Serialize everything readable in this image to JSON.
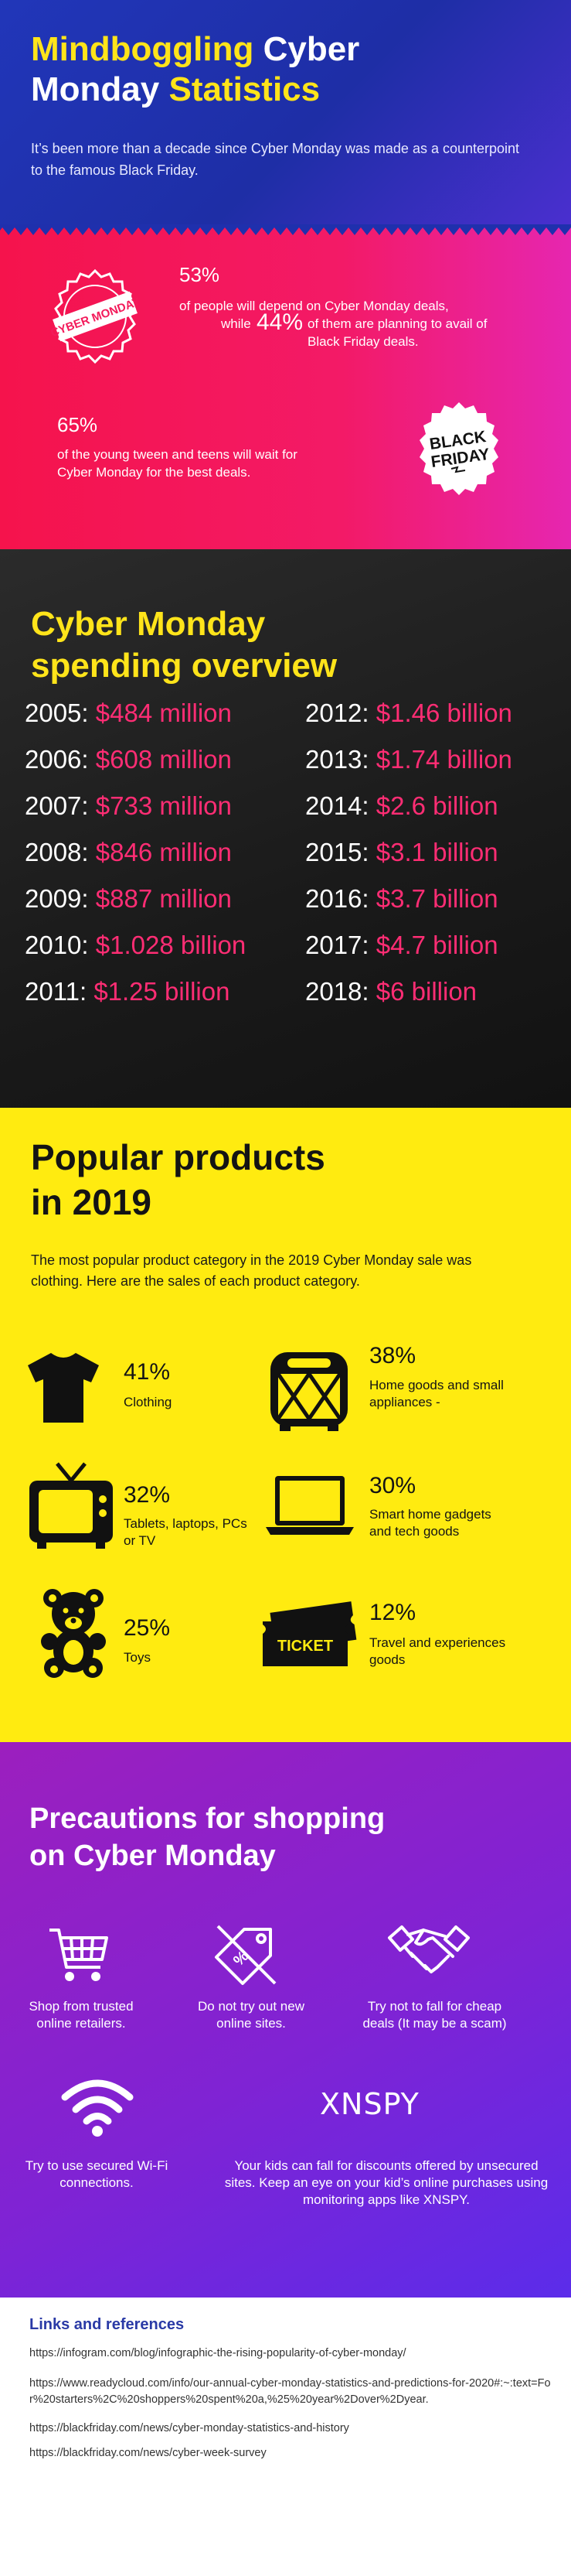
{
  "header": {
    "title_part1": "Mindboggling",
    "title_part2": "Cyber",
    "title_part3": "Monday",
    "title_part4": "Statistics",
    "intro": "It’s been more than a decade since Cyber Monday was made as a counterpoint to the famous Black Friday."
  },
  "pink": {
    "stamp_text": "CYBER MONDAY",
    "stat1_pct": "53%",
    "stat1_text": "of people will depend on Cyber Monday deals,",
    "stat1_while": "while",
    "stat2_pct": "44%",
    "stat2_text_line1": "of them are planning to avail of",
    "stat2_text_line2": "Black Friday deals.",
    "stat3_pct": "65%",
    "stat3_text_line1": "of the young tween and teens will wait for",
    "stat3_text_line2": "Cyber Monday for the best deals.",
    "badge_line1": "BLACK",
    "badge_line2": "FRIDAY"
  },
  "spending": {
    "title_line1": "Cyber Monday",
    "title_line2": "spending overview",
    "rows": [
      {
        "year": "2005:",
        "amount": "$484 million"
      },
      {
        "year": "2006:",
        "amount": "$608 million"
      },
      {
        "year": "2007:",
        "amount": "$733 million"
      },
      {
        "year": "2008:",
        "amount": "$846 million"
      },
      {
        "year": "2009:",
        "amount": "$887 million"
      },
      {
        "year": "2010:",
        "amount": "$1.028 billion"
      },
      {
        "year": "2011:",
        "amount": "$1.25 billion"
      },
      {
        "year": "2012:",
        "amount": "$1.46 billion"
      },
      {
        "year": "2013:",
        "amount": "$1.74 billion"
      },
      {
        "year": "2014:",
        "amount": "$2.6 billion"
      },
      {
        "year": "2015:",
        "amount": "$3.1 billion"
      },
      {
        "year": "2016:",
        "amount": "$3.7 billion"
      },
      {
        "year": "2017:",
        "amount": "$4.7 billion"
      },
      {
        "year": "2018:",
        "amount": "$6 billion"
      }
    ]
  },
  "products": {
    "title_line1": "Popular products",
    "title_line2": "in 2019",
    "intro": "The most popular product category in the 2019 Cyber Monday sale was clothing. Here are the sales of each product category.",
    "items": [
      {
        "pct": "41%",
        "label": "Clothing",
        "icon": "tshirt-icon"
      },
      {
        "pct": "38%",
        "label": "Home goods and small appliances -",
        "icon": "toaster-icon"
      },
      {
        "pct": "32%",
        "label": "Tablets, laptops, PCs or TV",
        "icon": "tv-icon"
      },
      {
        "pct": "30%",
        "label": "Smart home gadgets and tech goods",
        "icon": "laptop-icon"
      },
      {
        "pct": "25%",
        "label": "Toys",
        "icon": "teddy-bear-icon"
      },
      {
        "pct": "12%",
        "label": "Travel and experiences goods",
        "icon": "ticket-icon"
      }
    ],
    "ticket_text": "TICKET"
  },
  "precautions": {
    "title_line1": "Precautions for shopping",
    "title_line2": "on Cyber Monday",
    "items": [
      {
        "text": "Shop from trusted online retailers.",
        "icon": "shopping-cart-icon"
      },
      {
        "text": "Do not try out new online sites.",
        "icon": "price-tag-icon"
      },
      {
        "text": "Try not to fall for cheap deals (It may be a scam)",
        "icon": "handshake-icon"
      },
      {
        "text": "Try to use secured Wi-Fi connections.",
        "icon": "wifi-icon"
      },
      {
        "text": "Your kids can fall for discounts offered by unsecured sites. Keep an eye on your kid’s online purchases using monitoring apps like XNSPY.",
        "icon": "xnspy-logo"
      }
    ],
    "logo_text": "XNSPY"
  },
  "references": {
    "title": "Links and references",
    "links": [
      "https://infogram.com/blog/infographic-the-rising-popularity-of-cyber-monday/",
      "https://www.readycloud.com/info/our-annual-cyber-monday-statistics-and-predictions-for-2020#:~:text=For%20starters%2C%20shoppers%20spent%20a,%25%20year%2Dover%2Dyear.",
      "https://blackfriday.com/news/cyber-monday-statistics-and-history",
      "https://blackfriday.com/news/cyber-week-survey"
    ]
  },
  "colors": {
    "yellow": "#ffe41a",
    "pink": "#ff2d74",
    "blue": "#2136b9",
    "purple": "#8b22cc"
  }
}
